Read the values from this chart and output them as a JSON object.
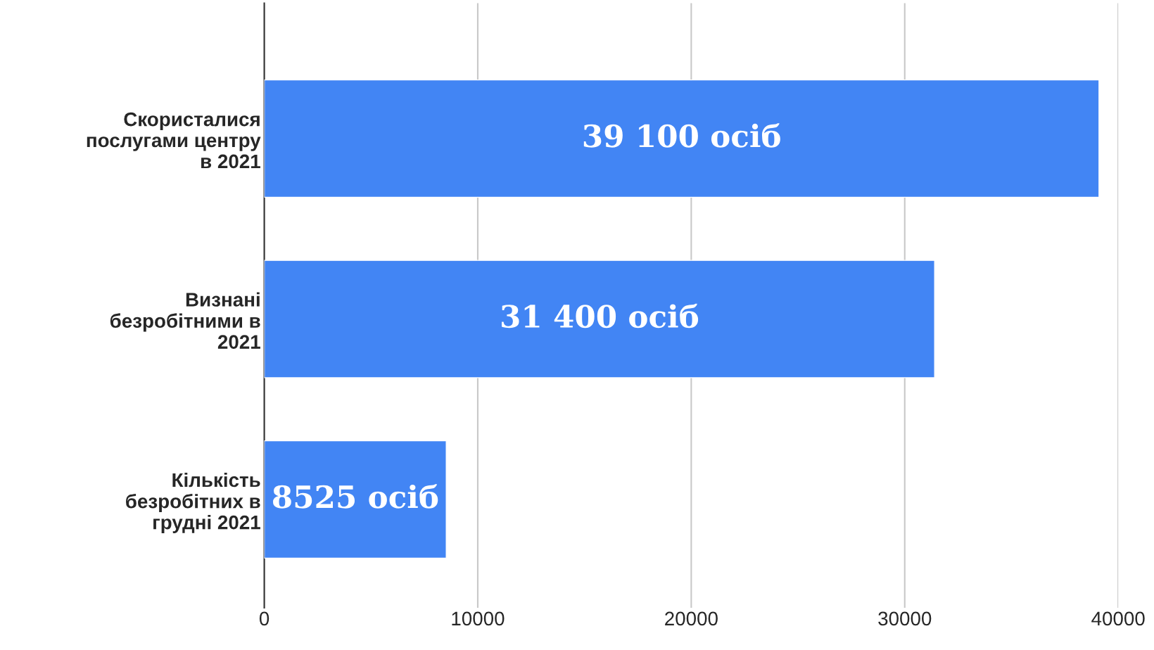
{
  "chart_data": {
    "type": "bar",
    "orientation": "horizontal",
    "categories": [
      "Скористалися\nпослугами центру\nв 2021",
      "Визнані\nбезробітними в\n2021",
      "Кількість\nбезробітних в\nгрудні 2021"
    ],
    "values": [
      39100,
      31400,
      8525
    ],
    "value_labels": [
      "39 100 осіб",
      "31 400 осіб",
      "8525 осіб"
    ],
    "color": "#4285f4",
    "xlim": [
      0,
      40000
    ],
    "xticks": [
      0,
      10000,
      20000,
      30000,
      40000
    ],
    "grid": "x",
    "legend": false
  }
}
